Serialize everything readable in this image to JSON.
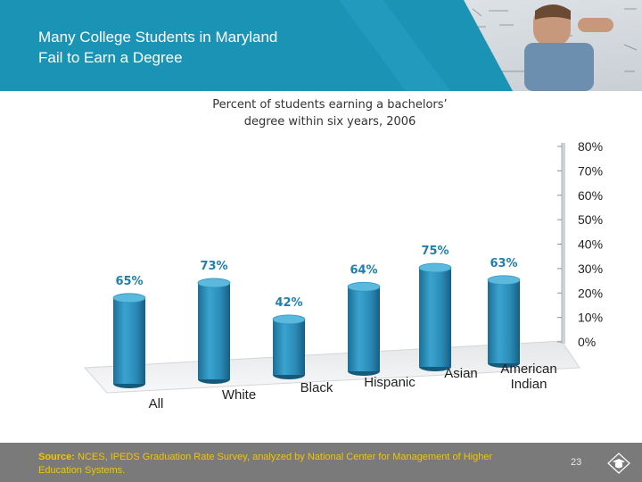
{
  "slide": {
    "title_line1": "Many College Students in Maryland",
    "title_line2": "Fail to Earn a Degree",
    "page_number": "23"
  },
  "source": {
    "label": "Source:",
    "text": "NCES, IPEDS Graduation Rate Survey, analyzed by National Center for Management of Higher Education Systems."
  },
  "colors": {
    "header_teal": "#1a93b5",
    "bar_blue": "#2e8bb4",
    "label_blue": "#1f7fae",
    "footer_gray": "#7a7a7a",
    "source_yellow": "#f2c500"
  },
  "chart_data": {
    "type": "bar",
    "title": "Percent of students earning a bachelors’ degree within six years, 2006",
    "title_lines": [
      "Percent of students earning a bachelors’",
      "degree within six years, 2006"
    ],
    "categories": [
      [
        "All"
      ],
      [
        "White"
      ],
      [
        "Black"
      ],
      [
        "Hispanic"
      ],
      [
        "Asian"
      ],
      [
        "American",
        "Indian"
      ]
    ],
    "values": [
      65,
      73,
      42,
      64,
      75,
      63
    ],
    "data_labels": [
      "65%",
      "73%",
      "42%",
      "64%",
      "75%",
      "63%"
    ],
    "ylim": [
      0,
      80
    ],
    "yticks": [
      "0%",
      "10%",
      "20%",
      "30%",
      "40%",
      "50%",
      "60%",
      "70%",
      "80%"
    ],
    "grid": false,
    "legend": "none",
    "style": "3d-cylinder"
  }
}
